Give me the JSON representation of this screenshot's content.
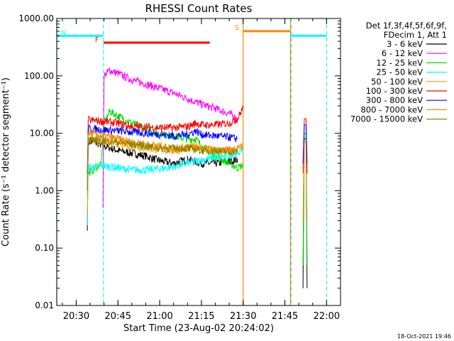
{
  "chart_data": {
    "type": "line",
    "title": "RHESSI Count Rates",
    "xlabel": "Start Time (23-Aug-02 20:24:02)",
    "ylabel": "Count Rate (s⁻¹ detector segment⁻¹)",
    "ylog": true,
    "ylim": [
      0.01,
      1000
    ],
    "xlim_minutes_after_2030": [
      -7,
      95
    ],
    "x_ticks": [
      {
        "label": "20:30",
        "t": 0
      },
      {
        "label": "20:45",
        "t": 15
      },
      {
        "label": "21:00",
        "t": 30
      },
      {
        "label": "21:15",
        "t": 45
      },
      {
        "label": "21:30",
        "t": 60
      },
      {
        "label": "21:45",
        "t": 75
      },
      {
        "label": "22:00",
        "t": 90
      }
    ],
    "y_ticks": [
      "0.01",
      "0.10",
      "1.00",
      "10.00",
      "100.00",
      "1000.00"
    ],
    "legend_header": [
      "Det 1f,3f,4f,5f,6f,9f,",
      "FDecim 1, Att 1"
    ],
    "legend_position": "right",
    "series": [
      {
        "name": "3 - 6 keV",
        "color": "#000000",
        "points": [
          [
            4,
            0.2
          ],
          [
            4.3,
            6
          ],
          [
            5,
            7.5
          ],
          [
            10,
            6
          ],
          [
            15,
            5
          ],
          [
            20,
            4.5
          ],
          [
            25,
            4
          ],
          [
            30,
            3.3
          ],
          [
            35,
            3
          ],
          [
            40,
            3.5
          ],
          [
            45,
            3
          ],
          [
            50,
            3
          ],
          [
            55,
            3.2
          ],
          [
            58,
            3.5
          ]
        ],
        "points2": [
          [
            81.5,
            0.02
          ],
          [
            82,
            8
          ],
          [
            82.6,
            8
          ],
          [
            83,
            0.02
          ]
        ]
      },
      {
        "name": "6 - 12 keV",
        "color": "#ff00ff",
        "points": [
          [
            9.6,
            0.5
          ],
          [
            10,
            100
          ],
          [
            12,
            125
          ],
          [
            15,
            110
          ],
          [
            20,
            85
          ],
          [
            25,
            72
          ],
          [
            30,
            60
          ],
          [
            35,
            50
          ],
          [
            40,
            40
          ],
          [
            45,
            32
          ],
          [
            50,
            27
          ],
          [
            55,
            22
          ],
          [
            58,
            18
          ]
        ]
      },
      {
        "name": "12 - 25 keV",
        "color": "#00dd00",
        "points": [
          [
            4,
            0.8
          ],
          [
            4.3,
            2
          ],
          [
            7,
            2.5
          ],
          [
            9,
            3
          ],
          [
            10,
            15
          ],
          [
            12,
            24
          ],
          [
            15,
            20
          ],
          [
            20,
            15
          ],
          [
            25,
            12
          ],
          [
            30,
            10
          ],
          [
            35,
            9
          ],
          [
            40,
            8
          ],
          [
            43,
            8
          ],
          [
            45,
            6
          ],
          [
            50,
            4
          ],
          [
            55,
            3
          ],
          [
            58,
            2.5
          ],
          [
            60,
            2.8
          ]
        ],
        "points2": [
          [
            81.5,
            0.05
          ],
          [
            82,
            10
          ],
          [
            82.6,
            10
          ],
          [
            83,
            0.05
          ]
        ]
      },
      {
        "name": "25 - 50 keV",
        "color": "#00ffff",
        "points": [
          [
            4,
            0.25
          ],
          [
            4.3,
            2.5
          ],
          [
            10,
            2.7
          ],
          [
            15,
            2.5
          ],
          [
            20,
            2.3
          ],
          [
            25,
            2.3
          ],
          [
            30,
            2.4
          ],
          [
            35,
            2.6
          ],
          [
            40,
            3
          ],
          [
            45,
            3.4
          ],
          [
            50,
            3.8
          ],
          [
            55,
            4.2
          ],
          [
            58,
            4.5
          ],
          [
            60,
            5.5
          ]
        ]
      },
      {
        "name": "50 - 100 keV",
        "color": "#ff9900",
        "points": [
          [
            4,
            0.4
          ],
          [
            4.3,
            8
          ],
          [
            10,
            7
          ],
          [
            15,
            6.5
          ],
          [
            20,
            6
          ],
          [
            25,
            5.5
          ],
          [
            30,
            5.2
          ],
          [
            35,
            5
          ],
          [
            40,
            5.5
          ],
          [
            43,
            6.5
          ],
          [
            45,
            5.5
          ],
          [
            50,
            5
          ],
          [
            55,
            5
          ],
          [
            58,
            5.5
          ],
          [
            60,
            6
          ]
        ],
        "points2": [
          [
            81.5,
            0.3
          ],
          [
            82,
            7
          ],
          [
            82.6,
            7
          ],
          [
            83,
            0.3
          ]
        ]
      },
      {
        "name": "100 - 300 keV",
        "color": "#ff0000",
        "points": [
          [
            4,
            1
          ],
          [
            4.3,
            17
          ],
          [
            10,
            16
          ],
          [
            15,
            15
          ],
          [
            20,
            13
          ],
          [
            25,
            13
          ],
          [
            30,
            12.5
          ],
          [
            35,
            12.5
          ],
          [
            40,
            13
          ],
          [
            43,
            15
          ],
          [
            45,
            14
          ],
          [
            50,
            14
          ],
          [
            55,
            15
          ],
          [
            58,
            18
          ],
          [
            60,
            28
          ]
        ],
        "points2": [
          [
            81.5,
            2
          ],
          [
            82,
            18
          ],
          [
            82.6,
            18
          ],
          [
            83,
            2
          ]
        ]
      },
      {
        "name": "300 - 800 keV",
        "color": "#0000ff",
        "points": [
          [
            4,
            2
          ],
          [
            4.3,
            12
          ],
          [
            10,
            11.5
          ],
          [
            15,
            11
          ],
          [
            20,
            10.5
          ],
          [
            25,
            10
          ],
          [
            30,
            9.5
          ],
          [
            35,
            9
          ],
          [
            40,
            9.5
          ],
          [
            43,
            11
          ],
          [
            45,
            9.5
          ],
          [
            50,
            9
          ],
          [
            55,
            8.5
          ],
          [
            58,
            8
          ]
        ],
        "points2": [
          [
            81.5,
            3
          ],
          [
            82,
            14
          ],
          [
            82.6,
            14
          ],
          [
            83,
            3
          ]
        ]
      },
      {
        "name": "800 - 7000 keV",
        "color": "#ff8800",
        "points": [
          [
            4,
            1
          ],
          [
            4.3,
            10
          ],
          [
            10,
            9
          ],
          [
            15,
            8
          ],
          [
            20,
            7
          ],
          [
            25,
            6.5
          ],
          [
            30,
            6
          ],
          [
            35,
            5.5
          ],
          [
            40,
            5.5
          ],
          [
            45,
            5.5
          ],
          [
            50,
            5
          ],
          [
            55,
            5
          ],
          [
            58,
            5
          ]
        ]
      },
      {
        "name": "7000 - 15000 keV",
        "color": "#888800",
        "points": [
          [
            4,
            1
          ],
          [
            4.3,
            8
          ],
          [
            10,
            7.5
          ],
          [
            15,
            7
          ],
          [
            20,
            6.5
          ],
          [
            25,
            6
          ],
          [
            30,
            5.5
          ],
          [
            35,
            5.5
          ],
          [
            40,
            5.5
          ],
          [
            45,
            5
          ],
          [
            50,
            5
          ],
          [
            55,
            4.8
          ],
          [
            58,
            4.8
          ]
        ]
      }
    ],
    "flags": [
      {
        "label": "N",
        "color": "#00ffff",
        "y": 500,
        "segments": [
          [
            -7,
            9.8
          ],
          [
            77,
            90
          ]
        ]
      },
      {
        "label": "F",
        "color": "#ff0000",
        "y": 380,
        "segments": [
          [
            9.8,
            48
          ]
        ]
      },
      {
        "label": "S",
        "color": "#ff8800",
        "y": 600,
        "segments": [
          [
            60,
            77
          ]
        ]
      }
    ],
    "vertical_lines": [
      {
        "t": -7,
        "color": "#00ffff",
        "style": "solid"
      },
      {
        "t": 9.8,
        "color": "#00ffff",
        "style": "dashed"
      },
      {
        "t": 60,
        "color": "#ff8800",
        "style": "solid"
      },
      {
        "t": 77,
        "color": "#ff8800",
        "style": "solid"
      },
      {
        "t": 77.3,
        "color": "#00ffff",
        "style": "dashed"
      },
      {
        "t": 90,
        "color": "#00ffff",
        "style": "dashed"
      }
    ]
  },
  "footer_timestamp": "18-Oct-2021 19:46"
}
